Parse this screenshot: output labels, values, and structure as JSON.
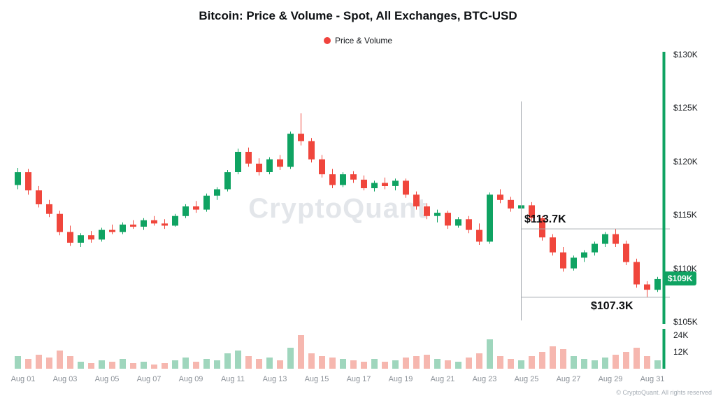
{
  "title": "Bitcoin: Price & Volume - Spot, All Exchanges, BTC-USD",
  "legend": {
    "label": "Price & Volume",
    "dot_color": "#f0433d"
  },
  "watermark": "CryptoQuant",
  "footer": {
    "copyright": "© CryptoQuant. All rights reserved"
  },
  "price_badge": {
    "label": "$109K",
    "value": 109
  },
  "annotations": {
    "high": {
      "label": "$113.7K",
      "value": 113.7
    },
    "low": {
      "label": "$107.3K",
      "value": 107.3
    },
    "crosshair_candle_index": 48
  },
  "colors": {
    "up": "#0fa362",
    "down": "#f0463c",
    "volume_up": "#9fd6bd",
    "volume_down": "#f6b7af",
    "annotation_line": "#a8adb3",
    "axis_line": "#0fa362",
    "badge_bg": "#0fa362"
  },
  "chart_data": {
    "type": "candlestick",
    "title": "Bitcoin: Price & Volume - Spot, All Exchanges, BTC-USD",
    "series_name": "Price & Volume",
    "unit": "USD (thousands)",
    "y_axis": {
      "min": 105,
      "max": 130,
      "ticks": [
        {
          "label": "$130K",
          "value": 130
        },
        {
          "label": "$125K",
          "value": 125
        },
        {
          "label": "$120K",
          "value": 120
        },
        {
          "label": "$115K",
          "value": 115
        },
        {
          "label": "$110K",
          "value": 110
        },
        {
          "label": "$105K",
          "value": 105
        }
      ]
    },
    "x_ticks": [
      "Aug 01",
      "Aug 03",
      "Aug 05",
      "Aug 07",
      "Aug 09",
      "Aug 11",
      "Aug 13",
      "Aug 15",
      "Aug 17",
      "Aug 19",
      "Aug 21",
      "Aug 23",
      "Aug 25",
      "Aug 27",
      "Aug 29",
      "Aug 31"
    ],
    "ohlc": [
      [
        117.8,
        119.4,
        117.4,
        119.0
      ],
      [
        119.0,
        119.3,
        116.9,
        117.3
      ],
      [
        117.3,
        117.7,
        115.7,
        116.0
      ],
      [
        116.0,
        116.4,
        114.8,
        115.1
      ],
      [
        115.1,
        115.4,
        113.1,
        113.4
      ],
      [
        113.4,
        114.0,
        112.1,
        112.4
      ],
      [
        112.4,
        113.3,
        112.0,
        113.1
      ],
      [
        113.1,
        113.5,
        112.4,
        112.7
      ],
      [
        112.7,
        113.8,
        112.5,
        113.6
      ],
      [
        113.6,
        114.1,
        113.2,
        113.4
      ],
      [
        113.4,
        114.3,
        113.2,
        114.1
      ],
      [
        114.1,
        114.5,
        113.7,
        113.9
      ],
      [
        113.9,
        114.7,
        113.6,
        114.5
      ],
      [
        114.5,
        114.9,
        114.0,
        114.2
      ],
      [
        114.2,
        114.6,
        113.7,
        114.0
      ],
      [
        114.0,
        115.1,
        113.9,
        114.9
      ],
      [
        114.9,
        116.0,
        114.7,
        115.8
      ],
      [
        115.8,
        116.3,
        115.2,
        115.5
      ],
      [
        115.5,
        117.0,
        115.3,
        116.8
      ],
      [
        116.8,
        117.6,
        116.4,
        117.4
      ],
      [
        117.4,
        119.2,
        117.2,
        119.0
      ],
      [
        119.0,
        121.2,
        118.8,
        120.9
      ],
      [
        120.9,
        121.3,
        119.5,
        119.8
      ],
      [
        119.8,
        120.3,
        118.7,
        119.0
      ],
      [
        119.0,
        120.4,
        118.8,
        120.2
      ],
      [
        120.2,
        120.6,
        119.2,
        119.5
      ],
      [
        119.5,
        122.8,
        119.3,
        122.6
      ],
      [
        122.6,
        124.5,
        121.5,
        121.9
      ],
      [
        121.9,
        122.2,
        119.9,
        120.2
      ],
      [
        120.2,
        120.6,
        118.5,
        118.8
      ],
      [
        118.8,
        119.3,
        117.5,
        117.8
      ],
      [
        117.8,
        119.0,
        117.6,
        118.8
      ],
      [
        118.8,
        119.1,
        118.0,
        118.3
      ],
      [
        118.3,
        118.7,
        117.3,
        117.5
      ],
      [
        117.5,
        118.2,
        117.2,
        118.0
      ],
      [
        118.0,
        118.5,
        117.4,
        117.7
      ],
      [
        117.7,
        118.4,
        117.3,
        118.2
      ],
      [
        118.2,
        118.4,
        116.6,
        116.9
      ],
      [
        116.9,
        117.2,
        115.5,
        115.8
      ],
      [
        115.8,
        116.1,
        114.6,
        114.9
      ],
      [
        114.9,
        115.5,
        114.3,
        115.2
      ],
      [
        115.2,
        115.4,
        113.7,
        114.0
      ],
      [
        114.0,
        114.8,
        113.8,
        114.6
      ],
      [
        114.6,
        114.9,
        113.3,
        113.6
      ],
      [
        113.6,
        114.2,
        112.2,
        112.5
      ],
      [
        112.5,
        117.1,
        112.3,
        116.9
      ],
      [
        116.9,
        117.4,
        116.1,
        116.4
      ],
      [
        116.4,
        116.7,
        115.3,
        115.6
      ],
      [
        115.6,
        116.1,
        115.2,
        115.9
      ],
      [
        115.9,
        116.2,
        114.4,
        114.7
      ],
      [
        114.7,
        114.9,
        112.6,
        112.9
      ],
      [
        112.9,
        113.2,
        111.2,
        111.5
      ],
      [
        111.5,
        112.0,
        109.7,
        110.0
      ],
      [
        110.0,
        111.2,
        109.8,
        111.0
      ],
      [
        111.0,
        111.7,
        110.6,
        111.5
      ],
      [
        111.5,
        112.5,
        111.2,
        112.3
      ],
      [
        112.3,
        113.4,
        112.0,
        113.2
      ],
      [
        113.2,
        113.7,
        112.0,
        112.3
      ],
      [
        112.3,
        112.6,
        110.3,
        110.6
      ],
      [
        110.6,
        110.9,
        108.2,
        108.5
      ],
      [
        108.5,
        108.8,
        107.3,
        108.0
      ],
      [
        108.0,
        109.2,
        107.8,
        109.0
      ]
    ],
    "volume": {
      "unit": "K",
      "ticks": [
        {
          "label": "24K",
          "value": 24
        },
        {
          "label": "12K",
          "value": 12
        }
      ],
      "values": [
        9,
        7,
        10,
        8,
        13,
        9,
        5,
        4,
        6,
        5,
        7,
        4,
        5,
        3,
        4,
        6,
        8,
        5,
        7,
        6,
        11,
        13,
        9,
        7,
        8,
        6,
        15,
        24,
        11,
        9,
        8,
        7,
        6,
        5,
        7,
        5,
        6,
        8,
        9,
        10,
        7,
        6,
        5,
        8,
        11,
        21,
        9,
        7,
        6,
        9,
        12,
        16,
        14,
        9,
        7,
        6,
        8,
        10,
        12,
        15,
        9,
        6
      ]
    }
  }
}
